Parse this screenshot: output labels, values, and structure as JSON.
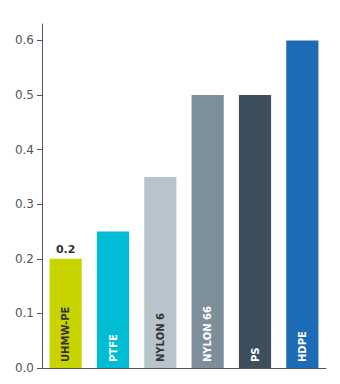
{
  "chart_data": {
    "type": "bar",
    "categories": [
      "UHMW-PE",
      "PTFE",
      "NYLON 6",
      "NYLON 66",
      "PS",
      "HDPE"
    ],
    "values": [
      0.2,
      0.25,
      0.35,
      0.5,
      0.5,
      0.6
    ],
    "colors": [
      "#c8d400",
      "#00bcd4",
      "#b8c4cc",
      "#7d8f9b",
      "#3d4f5c",
      "#1c6bb5"
    ],
    "ylim": [
      0,
      0.63
    ],
    "yticks": [
      {
        "value": 0,
        "label": "0.0"
      },
      0.1,
      0.2,
      0.3,
      0.4,
      0.5,
      0.6
    ],
    "annotations": [
      {
        "category": "UHMW-PE",
        "value": 0.2,
        "text": "0.2"
      }
    ],
    "grid": false,
    "tick_labels": "y"
  }
}
